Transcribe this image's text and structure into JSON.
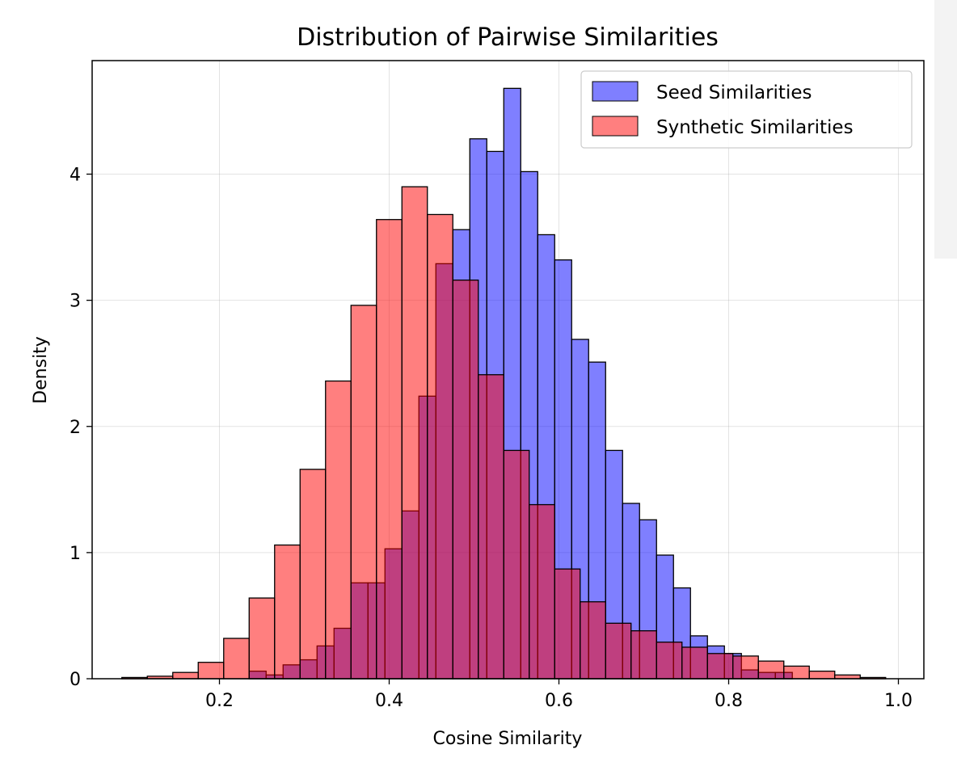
{
  "chart_data": {
    "type": "bar",
    "title": "Distribution of Pairwise Similarities",
    "xlabel": "Cosine Similarity",
    "ylabel": "Density",
    "xlim": [
      0.05,
      1.03
    ],
    "ylim": [
      0,
      4.9
    ],
    "xticks": [
      "0.2",
      "0.4",
      "0.6",
      "0.8",
      "1.0"
    ],
    "yticks": [
      "0",
      "1",
      "2",
      "3",
      "4"
    ],
    "grid": true,
    "legend_position": "top-right",
    "series": [
      {
        "name": "Seed Similarities",
        "color": "#0000ff",
        "opacity": 0.5,
        "bins": [
          {
            "x0": 0.235,
            "x1": 0.255,
            "y": 0.06
          },
          {
            "x0": 0.255,
            "x1": 0.275,
            "y": 0.03
          },
          {
            "x0": 0.275,
            "x1": 0.295,
            "y": 0.11
          },
          {
            "x0": 0.295,
            "x1": 0.315,
            "y": 0.15
          },
          {
            "x0": 0.315,
            "x1": 0.335,
            "y": 0.26
          },
          {
            "x0": 0.335,
            "x1": 0.355,
            "y": 0.4
          },
          {
            "x0": 0.355,
            "x1": 0.375,
            "y": 0.76
          },
          {
            "x0": 0.375,
            "x1": 0.395,
            "y": 0.76
          },
          {
            "x0": 0.395,
            "x1": 0.415,
            "y": 1.03
          },
          {
            "x0": 0.415,
            "x1": 0.435,
            "y": 1.33
          },
          {
            "x0": 0.435,
            "x1": 0.455,
            "y": 2.24
          },
          {
            "x0": 0.455,
            "x1": 0.475,
            "y": 3.29
          },
          {
            "x0": 0.475,
            "x1": 0.495,
            "y": 3.56
          },
          {
            "x0": 0.495,
            "x1": 0.515,
            "y": 4.28
          },
          {
            "x0": 0.515,
            "x1": 0.535,
            "y": 4.18
          },
          {
            "x0": 0.535,
            "x1": 0.555,
            "y": 4.68
          },
          {
            "x0": 0.555,
            "x1": 0.575,
            "y": 4.02
          },
          {
            "x0": 0.575,
            "x1": 0.595,
            "y": 3.52
          },
          {
            "x0": 0.595,
            "x1": 0.615,
            "y": 3.32
          },
          {
            "x0": 0.615,
            "x1": 0.635,
            "y": 2.69
          },
          {
            "x0": 0.635,
            "x1": 0.655,
            "y": 2.51
          },
          {
            "x0": 0.655,
            "x1": 0.675,
            "y": 1.81
          },
          {
            "x0": 0.675,
            "x1": 0.695,
            "y": 1.39
          },
          {
            "x0": 0.695,
            "x1": 0.715,
            "y": 1.26
          },
          {
            "x0": 0.715,
            "x1": 0.735,
            "y": 0.98
          },
          {
            "x0": 0.735,
            "x1": 0.755,
            "y": 0.72
          },
          {
            "x0": 0.755,
            "x1": 0.775,
            "y": 0.34
          },
          {
            "x0": 0.775,
            "x1": 0.795,
            "y": 0.26
          },
          {
            "x0": 0.795,
            "x1": 0.815,
            "y": 0.2
          },
          {
            "x0": 0.815,
            "x1": 0.835,
            "y": 0.07
          },
          {
            "x0": 0.835,
            "x1": 0.855,
            "y": 0.05
          },
          {
            "x0": 0.855,
            "x1": 0.875,
            "y": 0.05
          }
        ]
      },
      {
        "name": "Synthetic Similarities",
        "color": "#ff0000",
        "opacity": 0.5,
        "bins": [
          {
            "x0": 0.085,
            "x1": 0.115,
            "y": 0.01
          },
          {
            "x0": 0.115,
            "x1": 0.145,
            "y": 0.02
          },
          {
            "x0": 0.145,
            "x1": 0.175,
            "y": 0.05
          },
          {
            "x0": 0.175,
            "x1": 0.205,
            "y": 0.13
          },
          {
            "x0": 0.205,
            "x1": 0.235,
            "y": 0.32
          },
          {
            "x0": 0.235,
            "x1": 0.265,
            "y": 0.64
          },
          {
            "x0": 0.265,
            "x1": 0.295,
            "y": 1.06
          },
          {
            "x0": 0.295,
            "x1": 0.325,
            "y": 1.66
          },
          {
            "x0": 0.325,
            "x1": 0.355,
            "y": 2.36
          },
          {
            "x0": 0.355,
            "x1": 0.385,
            "y": 2.96
          },
          {
            "x0": 0.385,
            "x1": 0.415,
            "y": 3.64
          },
          {
            "x0": 0.415,
            "x1": 0.445,
            "y": 3.9
          },
          {
            "x0": 0.445,
            "x1": 0.475,
            "y": 3.68
          },
          {
            "x0": 0.475,
            "x1": 0.505,
            "y": 3.16
          },
          {
            "x0": 0.505,
            "x1": 0.535,
            "y": 2.41
          },
          {
            "x0": 0.535,
            "x1": 0.565,
            "y": 1.81
          },
          {
            "x0": 0.565,
            "x1": 0.595,
            "y": 1.38
          },
          {
            "x0": 0.595,
            "x1": 0.625,
            "y": 0.87
          },
          {
            "x0": 0.625,
            "x1": 0.655,
            "y": 0.61
          },
          {
            "x0": 0.655,
            "x1": 0.685,
            "y": 0.44
          },
          {
            "x0": 0.685,
            "x1": 0.715,
            "y": 0.38
          },
          {
            "x0": 0.715,
            "x1": 0.745,
            "y": 0.29
          },
          {
            "x0": 0.745,
            "x1": 0.775,
            "y": 0.25
          },
          {
            "x0": 0.775,
            "x1": 0.805,
            "y": 0.2
          },
          {
            "x0": 0.805,
            "x1": 0.835,
            "y": 0.18
          },
          {
            "x0": 0.835,
            "x1": 0.865,
            "y": 0.14
          },
          {
            "x0": 0.865,
            "x1": 0.895,
            "y": 0.1
          },
          {
            "x0": 0.895,
            "x1": 0.925,
            "y": 0.06
          },
          {
            "x0": 0.925,
            "x1": 0.955,
            "y": 0.03
          },
          {
            "x0": 0.955,
            "x1": 0.985,
            "y": 0.01
          }
        ]
      }
    ]
  }
}
